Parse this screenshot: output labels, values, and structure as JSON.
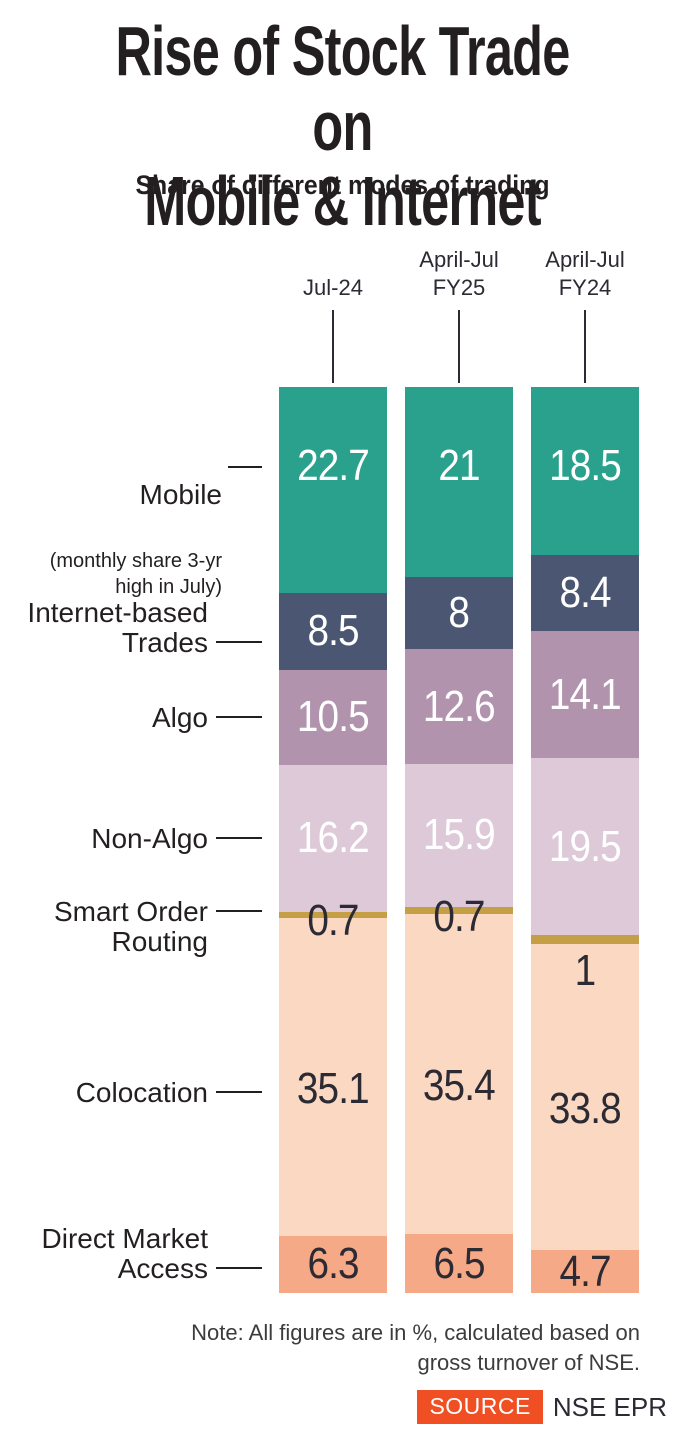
{
  "title": "Rise of Stock Trade on\nMobile & Internet",
  "subtitle": "Share of different modes of trading",
  "footer": {
    "note": "Note: All figures are in %, calculated based on\ngross turnover of NSE.",
    "source_label": "SOURCE",
    "source_value": "NSE EPR",
    "source_badge_color": "#f04f23"
  },
  "chart_data": {
    "type": "bar",
    "stacked": true,
    "unit": "%",
    "legend_position": "left",
    "grid": false,
    "columns": [
      "Jul-24",
      "April-Jul\nFY25",
      "April-Jul\nFY24"
    ],
    "series": [
      {
        "name": "Mobile",
        "note": "(monthly share 3-yr\nhigh in July)",
        "color": "#2aa18c",
        "label_color": "#ffffff",
        "values": [
          22.7,
          21,
          18.5
        ]
      },
      {
        "name": "Internet-based\nTrades",
        "color": "#4a5672",
        "label_color": "#ffffff",
        "values": [
          8.5,
          8,
          8.4
        ]
      },
      {
        "name": "Algo",
        "color": "#b293ae",
        "label_color": "#ffffff",
        "values": [
          10.5,
          12.6,
          14.1
        ]
      },
      {
        "name": "Non-Algo",
        "color": "#ddc9d8",
        "label_color": "#ffffff",
        "values": [
          16.2,
          15.9,
          19.5
        ]
      },
      {
        "name": "Smart Order\nRouting",
        "color": "#c59f45",
        "label_color": "#2c2a33",
        "values": [
          0.7,
          0.7,
          1
        ]
      },
      {
        "name": "Colocation",
        "color": "#fbd8c2",
        "label_color": "#2c2a33",
        "values": [
          35.1,
          35.4,
          33.8
        ]
      },
      {
        "name": "Direct Market\nAccess",
        "color": "#f6a987",
        "label_color": "#2c2a33",
        "values": [
          6.3,
          6.5,
          4.7
        ]
      }
    ]
  }
}
